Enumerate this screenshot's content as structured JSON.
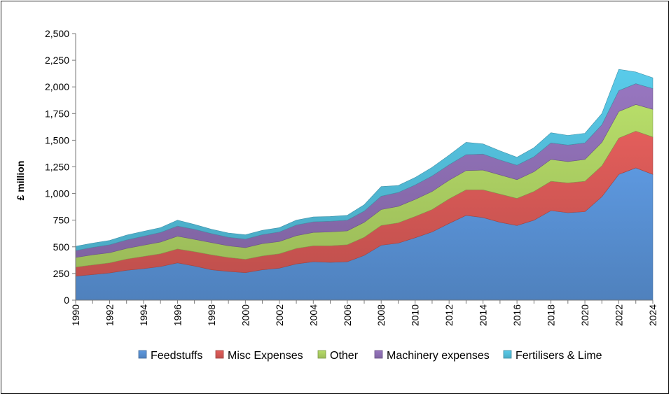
{
  "chart_data": {
    "type": "area",
    "stacked": true,
    "title": "",
    "xlabel": "",
    "ylabel": "£ million",
    "ylim": [
      0,
      2500
    ],
    "yticks": [
      0,
      250,
      500,
      750,
      1000,
      1250,
      1500,
      1750,
      2000,
      2250,
      2500
    ],
    "ytick_labels": [
      "0",
      "250",
      "500",
      "750",
      "1,000",
      "1,250",
      "1,500",
      "1,750",
      "2,000",
      "2,250",
      "2,500"
    ],
    "xtick_labels": [
      "1990",
      "1992",
      "1994",
      "1996",
      "1998",
      "2000",
      "2002",
      "2004",
      "2006",
      "2008",
      "2010",
      "2012",
      "2014",
      "2016",
      "2018",
      "2020",
      "2022",
      "2024"
    ],
    "grid": false,
    "legend_position": "bottom",
    "x": [
      1990,
      1991,
      1992,
      1993,
      1994,
      1995,
      1996,
      1997,
      1998,
      1999,
      2000,
      2001,
      2002,
      2003,
      2004,
      2005,
      2006,
      2007,
      2008,
      2009,
      2010,
      2011,
      2012,
      2013,
      2014,
      2015,
      2016,
      2017,
      2018,
      2019,
      2020,
      2021,
      2022,
      2023,
      2024
    ],
    "series": [
      {
        "name": "Feedstuffs",
        "color": "#4F81BD",
        "values": [
          225,
          240,
          255,
          280,
          295,
          315,
          350,
          320,
          285,
          270,
          258,
          285,
          300,
          340,
          360,
          355,
          360,
          420,
          515,
          535,
          585,
          640,
          720,
          795,
          775,
          730,
          700,
          750,
          840,
          820,
          830,
          970,
          1180,
          1240,
          1180
        ]
      },
      {
        "name": "Misc Expenses",
        "color": "#C0504D",
        "values": [
          85,
          90,
          95,
          105,
          115,
          120,
          130,
          135,
          140,
          130,
          125,
          130,
          135,
          145,
          150,
          155,
          160,
          170,
          185,
          190,
          200,
          210,
          230,
          240,
          260,
          265,
          255,
          270,
          275,
          280,
          285,
          290,
          340,
          345,
          350
        ]
      },
      {
        "name": "Other",
        "color": "#9BBB59",
        "values": [
          90,
          95,
          95,
          100,
          105,
          110,
          120,
          115,
          115,
          110,
          110,
          115,
          115,
          120,
          125,
          130,
          130,
          140,
          150,
          155,
          160,
          170,
          175,
          180,
          185,
          180,
          175,
          185,
          205,
          200,
          205,
          220,
          250,
          250,
          260
        ]
      },
      {
        "name": "Machinery expenses",
        "color": "#8064A2",
        "values": [
          65,
          70,
          75,
          80,
          85,
          90,
          95,
          95,
          85,
          80,
          80,
          85,
          90,
          100,
          100,
          100,
          100,
          105,
          125,
          130,
          135,
          145,
          145,
          150,
          150,
          140,
          135,
          140,
          155,
          155,
          155,
          165,
          195,
          195,
          195
        ]
      },
      {
        "name": "Fertilisers & Lime",
        "color": "#4BACC6",
        "values": [
          40,
          40,
          40,
          45,
          45,
          45,
          55,
          45,
          40,
          40,
          40,
          40,
          40,
          45,
          45,
          45,
          45,
          60,
          90,
          65,
          70,
          80,
          90,
          115,
          95,
          85,
          75,
          85,
          95,
          90,
          90,
          105,
          200,
          110,
          100
        ]
      }
    ]
  }
}
